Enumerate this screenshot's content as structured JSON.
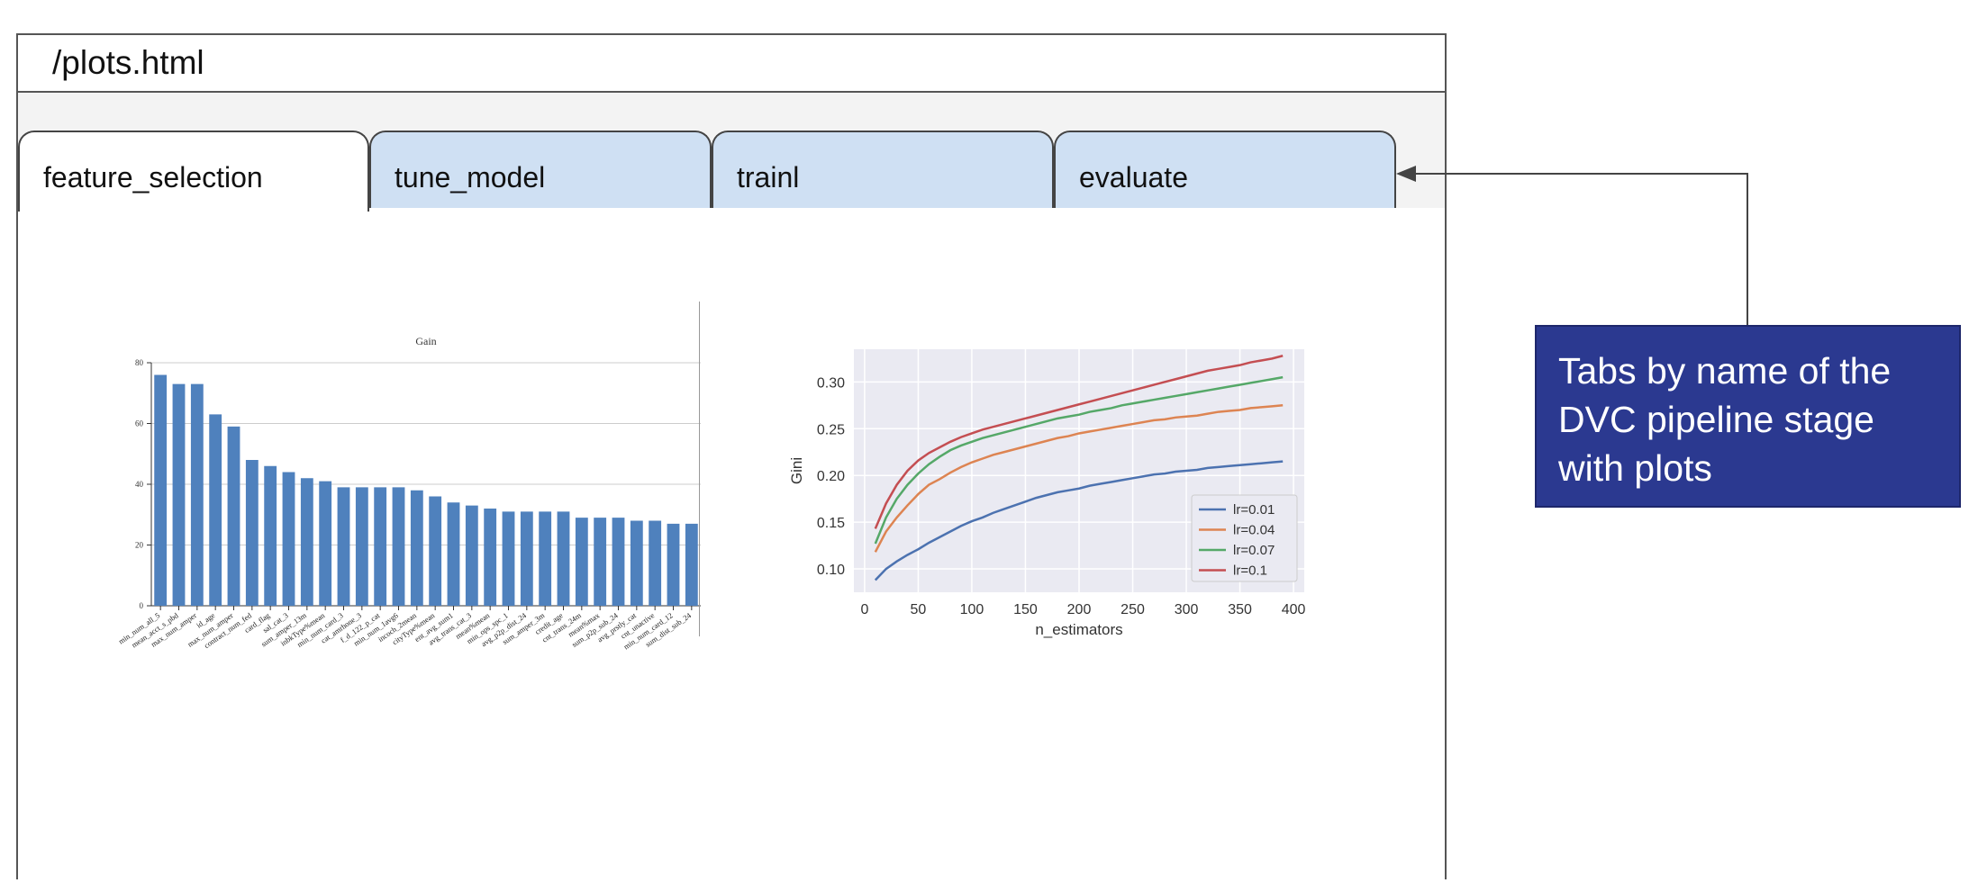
{
  "url": "/plots.html",
  "tabs": [
    {
      "label": "feature_selection",
      "active": true
    },
    {
      "label": "tune_model",
      "active": false
    },
    {
      "label": "trainl",
      "active": false
    },
    {
      "label": "evaluate",
      "active": false
    }
  ],
  "callout": {
    "text": "Tabs by name of the DVC pipeline stage with plots"
  },
  "colors": {
    "bar": "#4f81bd",
    "callout_bg": "#2b3990",
    "tab_bg": "#cfe0f3",
    "plot_bg": "#eaeaf2"
  },
  "chart_data": [
    {
      "type": "bar",
      "title": "Gain",
      "xlabel": "",
      "ylabel": "",
      "ylim": [
        0,
        80
      ],
      "yticks": [
        0,
        20,
        40,
        60,
        80
      ],
      "categories": [
        "min_num_all_5",
        "mean_acct_s_pbd",
        "max_num_amper",
        "id_age",
        "max_num_amper",
        "contract_num_fed",
        "card_flag",
        "sal_cat_3",
        "sum_amper_13m",
        "inbkType%mean",
        "min_num_card_3",
        "cat_amrhone_3",
        "f_d_122_p_cat",
        "min_num_1avg6",
        "incoch_2mean",
        "cityType%mean",
        "ent_avg_sum1",
        "avg_trans_cat_3",
        "mean%mean",
        "min_ops_spc_1",
        "avg_p2p_dist_24",
        "sum_amper_3m",
        "credit_age",
        "cnt_trans_24m",
        "mean%max",
        "sum_p2p_sub_24",
        "avg_prstly_cat",
        "cnt_unactive",
        "min_num_card_12",
        "sum_dist_sub_24"
      ],
      "values": [
        76,
        73,
        73,
        63,
        59,
        48,
        46,
        44,
        42,
        41,
        39,
        39,
        39,
        39,
        38,
        36,
        34,
        33,
        32,
        31,
        31,
        31,
        31,
        29,
        29,
        29,
        28,
        28,
        27,
        27
      ],
      "grid": "horizontal"
    },
    {
      "type": "line",
      "xlabel": "n_estimators",
      "ylabel": "Gini",
      "xlim": [
        -10,
        410
      ],
      "ylim": [
        0.075,
        0.335
      ],
      "xticks": [
        0,
        50,
        100,
        150,
        200,
        250,
        300,
        350,
        400
      ],
      "yticks": [
        0.1,
        0.15,
        0.2,
        0.25,
        0.3
      ],
      "grid": true,
      "legend": "lower-right",
      "x": [
        10,
        20,
        30,
        40,
        50,
        60,
        70,
        80,
        90,
        100,
        110,
        120,
        130,
        140,
        150,
        160,
        170,
        180,
        190,
        200,
        210,
        220,
        230,
        240,
        250,
        260,
        270,
        280,
        290,
        300,
        310,
        320,
        330,
        340,
        350,
        360,
        370,
        380,
        390
      ],
      "series": [
        {
          "name": "lr=0.01",
          "color": "#4c72b0",
          "values": [
            0.088,
            0.1,
            0.108,
            0.115,
            0.121,
            0.128,
            0.134,
            0.14,
            0.146,
            0.151,
            0.155,
            0.16,
            0.164,
            0.168,
            0.172,
            0.176,
            0.179,
            0.182,
            0.184,
            0.186,
            0.189,
            0.191,
            0.193,
            0.195,
            0.197,
            0.199,
            0.201,
            0.202,
            0.204,
            0.205,
            0.206,
            0.208,
            0.209,
            0.21,
            0.211,
            0.212,
            0.213,
            0.214,
            0.215
          ]
        },
        {
          "name": "lr=0.04",
          "color": "#dd8452",
          "values": [
            0.118,
            0.14,
            0.155,
            0.168,
            0.18,
            0.19,
            0.196,
            0.203,
            0.209,
            0.214,
            0.218,
            0.222,
            0.225,
            0.228,
            0.231,
            0.234,
            0.237,
            0.24,
            0.242,
            0.245,
            0.247,
            0.249,
            0.251,
            0.253,
            0.255,
            0.257,
            0.259,
            0.26,
            0.262,
            0.263,
            0.264,
            0.266,
            0.268,
            0.269,
            0.27,
            0.272,
            0.273,
            0.274,
            0.275
          ]
        },
        {
          "name": "lr=0.07",
          "color": "#55a868",
          "values": [
            0.127,
            0.155,
            0.175,
            0.19,
            0.202,
            0.212,
            0.22,
            0.227,
            0.232,
            0.236,
            0.24,
            0.243,
            0.246,
            0.249,
            0.252,
            0.255,
            0.258,
            0.261,
            0.263,
            0.265,
            0.268,
            0.27,
            0.272,
            0.275,
            0.277,
            0.279,
            0.281,
            0.283,
            0.285,
            0.287,
            0.289,
            0.291,
            0.293,
            0.295,
            0.297,
            0.299,
            0.301,
            0.303,
            0.305
          ]
        },
        {
          "name": "lr=0.1",
          "color": "#c44e52",
          "values": [
            0.143,
            0.17,
            0.19,
            0.205,
            0.216,
            0.224,
            0.23,
            0.236,
            0.241,
            0.245,
            0.249,
            0.252,
            0.255,
            0.258,
            0.261,
            0.264,
            0.267,
            0.27,
            0.273,
            0.276,
            0.279,
            0.282,
            0.285,
            0.288,
            0.291,
            0.294,
            0.297,
            0.3,
            0.303,
            0.306,
            0.309,
            0.312,
            0.314,
            0.316,
            0.318,
            0.321,
            0.323,
            0.325,
            0.328
          ]
        }
      ]
    }
  ]
}
